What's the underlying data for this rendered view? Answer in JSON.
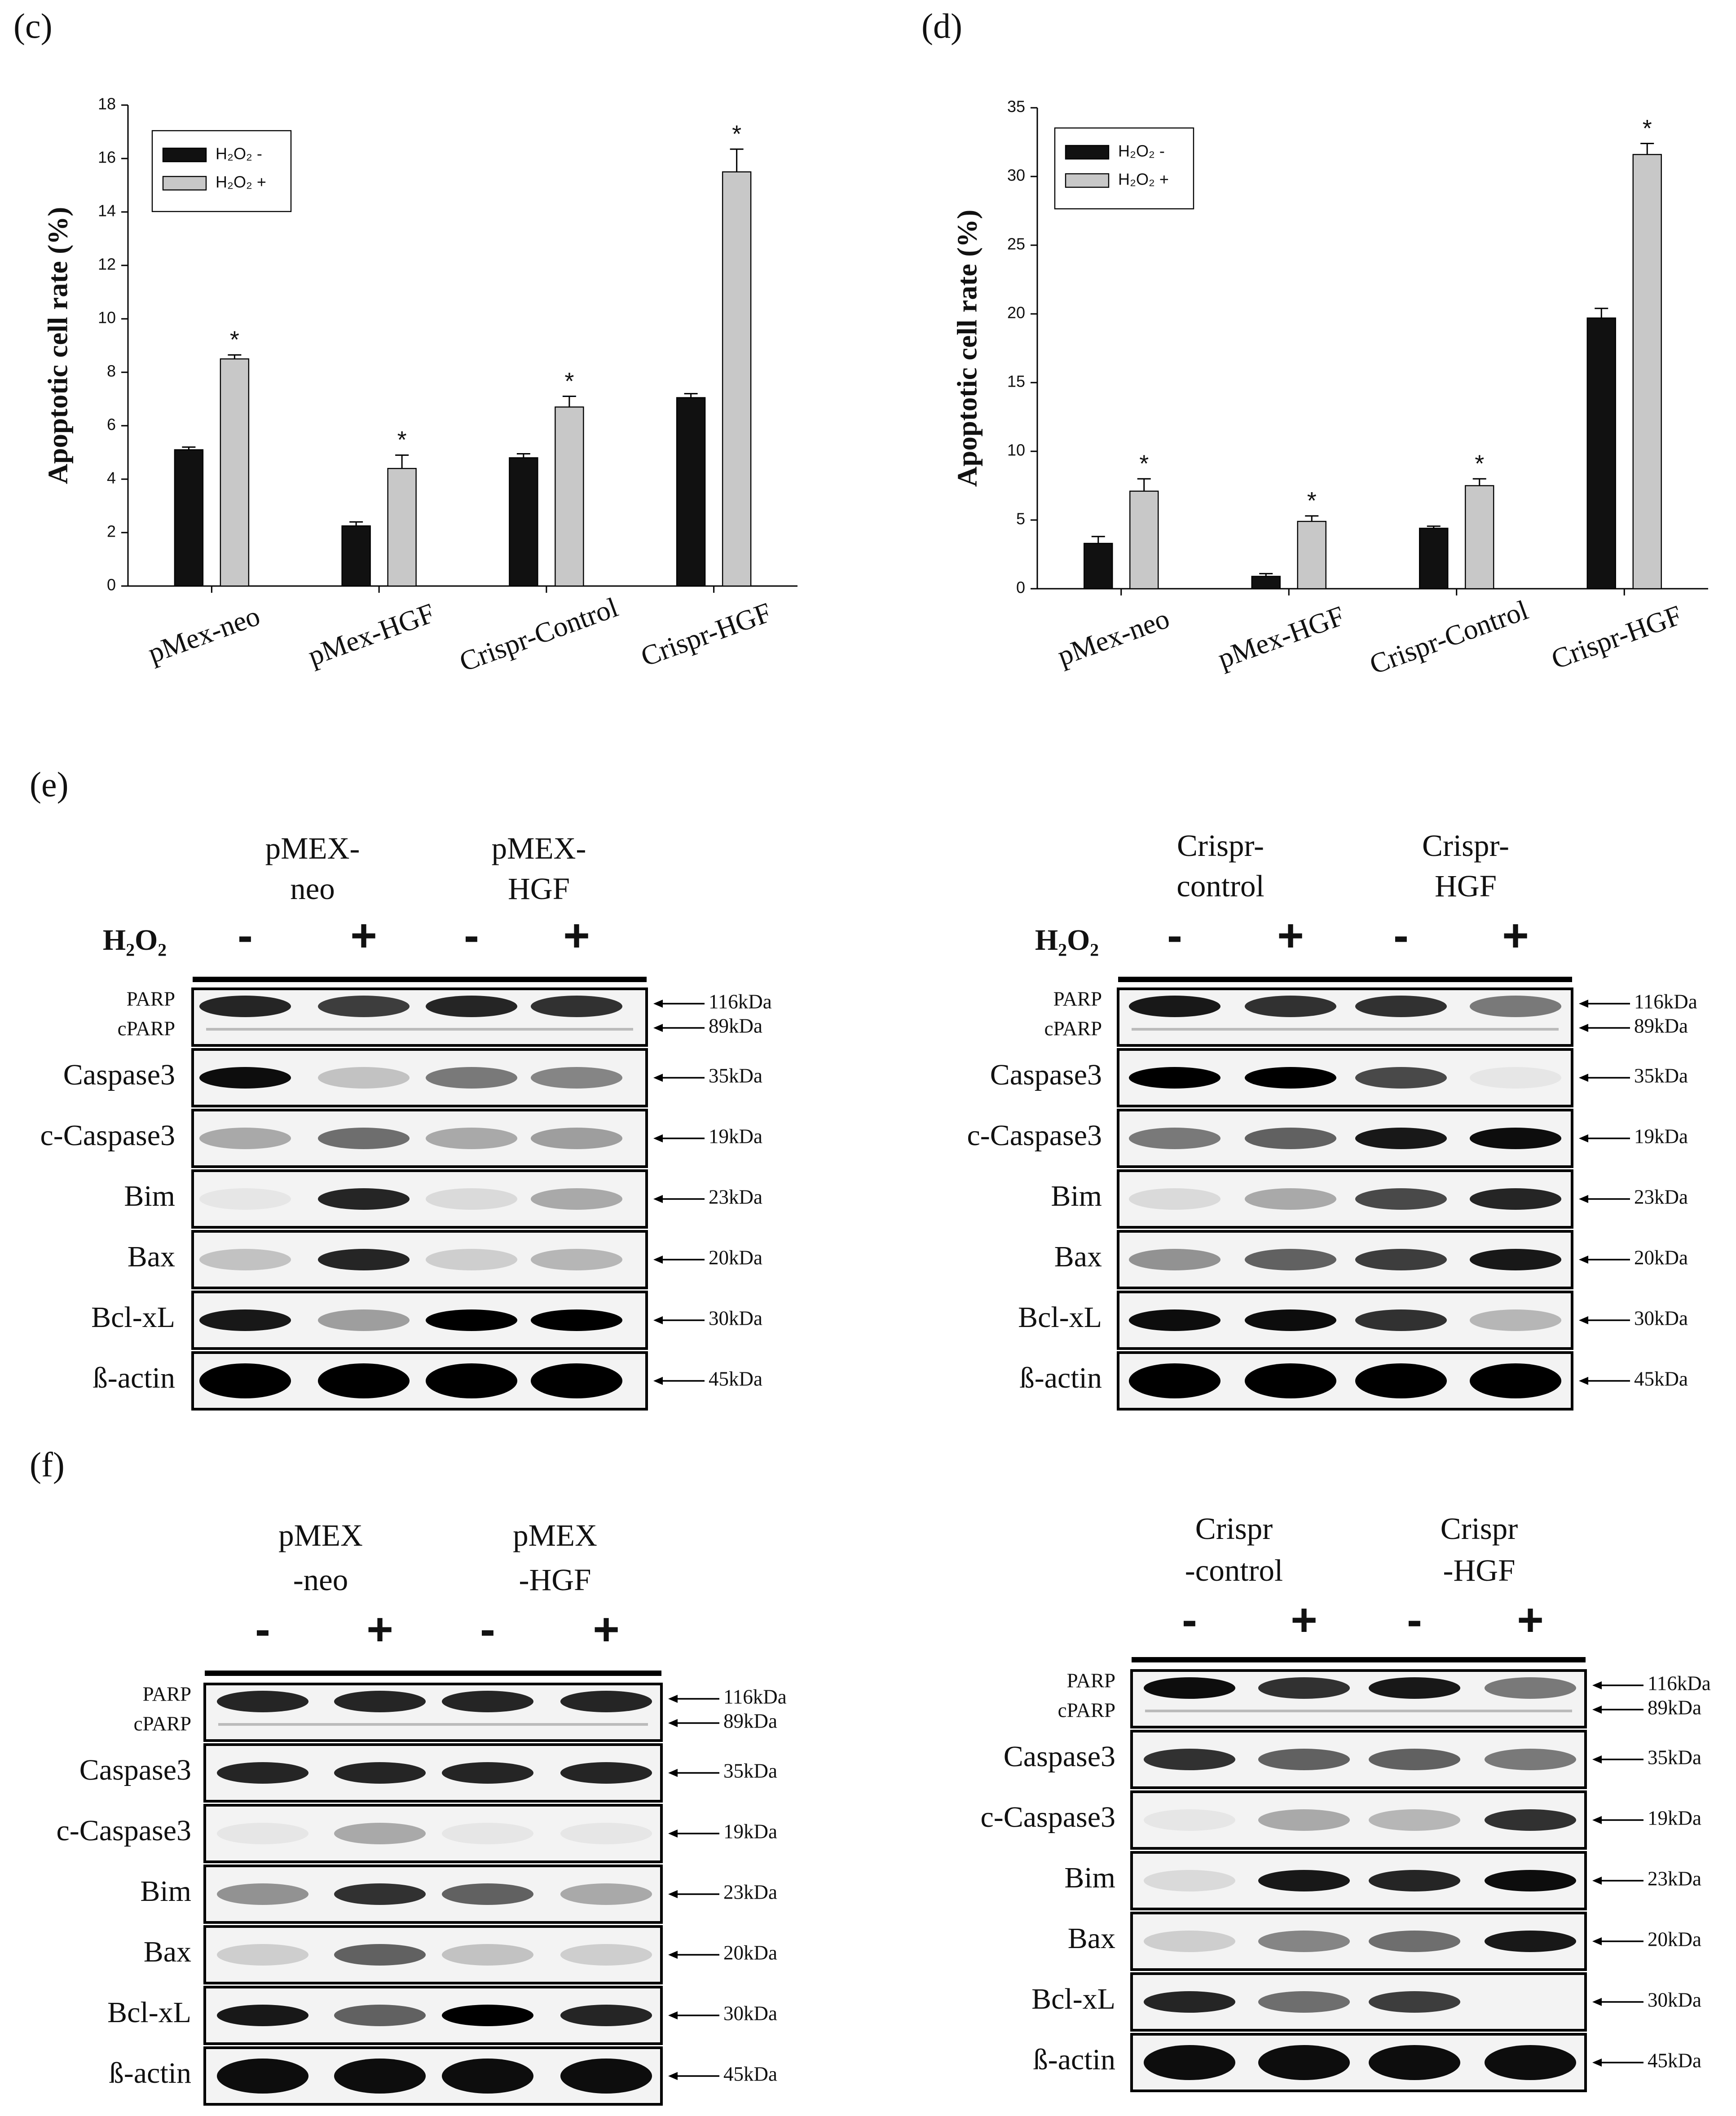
{
  "chart_data": [
    {
      "type": "bar",
      "panel": "(c)",
      "ylabel": "Apoptotic cell rate (%)",
      "categories": [
        "pMex-neo",
        "pMex-HGF",
        "Crispr-Control",
        "Crispr-HGF"
      ],
      "series": [
        {
          "name": "H₂O₂ -",
          "color": "#111111",
          "values": [
            5.1,
            2.25,
            4.8,
            7.05
          ],
          "errors": [
            0.1,
            0.15,
            0.15,
            0.15
          ]
        },
        {
          "name": "H₂O₂ +",
          "color": "#c8c8c8",
          "values": [
            8.5,
            4.4,
            6.7,
            15.5
          ],
          "errors": [
            0.15,
            0.5,
            0.4,
            0.85
          ],
          "significance": [
            "*",
            "*",
            "*",
            "*"
          ]
        }
      ],
      "ylim": [
        0,
        18
      ],
      "yticks": [
        0,
        2,
        4,
        6,
        8,
        10,
        12,
        14,
        16,
        18
      ],
      "legend": "upper left"
    },
    {
      "type": "bar",
      "panel": "(d)",
      "ylabel": "Apoptotic cell rate (%)",
      "categories": [
        "pMex-neo",
        "pMex-HGF",
        "Crispr-Control",
        "Crispr-HGF"
      ],
      "series": [
        {
          "name": "H₂O₂ -",
          "color": "#111111",
          "values": [
            3.3,
            0.9,
            4.4,
            19.7
          ],
          "errors": [
            0.5,
            0.2,
            0.15,
            0.7
          ]
        },
        {
          "name": "H₂O₂ +",
          "color": "#c8c8c8",
          "values": [
            7.1,
            4.9,
            7.5,
            31.6
          ],
          "errors": [
            0.9,
            0.4,
            0.5,
            0.8
          ],
          "significance": [
            "*",
            "*",
            "*",
            "*"
          ]
        }
      ],
      "ylim": [
        0,
        35
      ],
      "yticks": [
        0,
        5,
        10,
        15,
        20,
        25,
        30,
        35
      ],
      "legend": "upper left"
    }
  ],
  "blots": {
    "panels": [
      {
        "label": "(e)",
        "blots": [
          {
            "groups": [
              [
                "pMEX-",
                "neo"
              ],
              [
                "pMEX-",
                "HGF"
              ]
            ],
            "treatment": "H₂O₂",
            "signs": [
              "-",
              "+",
              "-",
              "+"
            ],
            "rows": [
              {
                "names": [
                  "PARP",
                  "cPARP"
                ],
                "sizes": [
                  "116kDa",
                  "89kDa"
                ]
              },
              {
                "names": [
                  "Caspase3"
                ],
                "sizes": [
                  "35kDa"
                ]
              },
              {
                "names": [
                  "c-Caspase3"
                ],
                "sizes": [
                  "19kDa"
                ]
              },
              {
                "names": [
                  "Bim"
                ],
                "sizes": [
                  "23kDa"
                ]
              },
              {
                "names": [
                  "Bax"
                ],
                "sizes": [
                  "20kDa"
                ]
              },
              {
                "names": [
                  "Bcl-xL"
                ],
                "sizes": [
                  "30kDa"
                ]
              },
              {
                "names": [
                  "ß-actin"
                ],
                "sizes": [
                  "45kDa"
                ]
              }
            ]
          },
          {
            "groups": [
              [
                "Crispr-",
                "control"
              ],
              [
                "Crispr-",
                "HGF"
              ]
            ],
            "treatment": "H₂O₂",
            "signs": [
              "-",
              "+",
              "-",
              "+"
            ],
            "rows": [
              {
                "names": [
                  "PARP",
                  "cPARP"
                ],
                "sizes": [
                  "116kDa",
                  "89kDa"
                ]
              },
              {
                "names": [
                  "Caspase3"
                ],
                "sizes": [
                  "35kDa"
                ]
              },
              {
                "names": [
                  "c-Caspase3"
                ],
                "sizes": [
                  "19kDa"
                ]
              },
              {
                "names": [
                  "Bim"
                ],
                "sizes": [
                  "23kDa"
                ]
              },
              {
                "names": [
                  "Bax"
                ],
                "sizes": [
                  "20kDa"
                ]
              },
              {
                "names": [
                  "Bcl-xL"
                ],
                "sizes": [
                  "30kDa"
                ]
              },
              {
                "names": [
                  "ß-actin"
                ],
                "sizes": [
                  "45kDa"
                ]
              }
            ]
          }
        ]
      },
      {
        "label": "(f)",
        "blots": [
          {
            "groups": [
              [
                "pMEX",
                "-neo"
              ],
              [
                "pMEX",
                "-HGF"
              ]
            ],
            "signs": [
              "-",
              "+",
              "-",
              "+"
            ],
            "rows": [
              {
                "names": [
                  "PARP",
                  "cPARP"
                ],
                "sizes": [
                  "116kDa",
                  "89kDa"
                ]
              },
              {
                "names": [
                  "Caspase3"
                ],
                "sizes": [
                  "35kDa"
                ]
              },
              {
                "names": [
                  "c-Caspase3"
                ],
                "sizes": [
                  "19kDa"
                ]
              },
              {
                "names": [
                  "Bim"
                ],
                "sizes": [
                  "23kDa"
                ]
              },
              {
                "names": [
                  "Bax"
                ],
                "sizes": [
                  "20kDa"
                ]
              },
              {
                "names": [
                  "Bcl-xL"
                ],
                "sizes": [
                  "30kDa"
                ]
              },
              {
                "names": [
                  "ß-actin"
                ],
                "sizes": [
                  "45kDa"
                ]
              }
            ]
          },
          {
            "groups": [
              [
                "Crispr",
                "-control"
              ],
              [
                "Crispr",
                "-HGF"
              ]
            ],
            "signs": [
              "-",
              "+",
              "-",
              "+"
            ],
            "rows": [
              {
                "names": [
                  "PARP",
                  "cPARP"
                ],
                "sizes": [
                  "116kDa",
                  "89kDa"
                ]
              },
              {
                "names": [
                  "Caspase3"
                ],
                "sizes": [
                  "35kDa"
                ]
              },
              {
                "names": [
                  "c-Caspase3"
                ],
                "sizes": [
                  "19kDa"
                ]
              },
              {
                "names": [
                  "Bim"
                ],
                "sizes": [
                  "23kDa"
                ]
              },
              {
                "names": [
                  "Bax"
                ],
                "sizes": [
                  "20kDa"
                ]
              },
              {
                "names": [
                  "Bcl-xL"
                ],
                "sizes": [
                  "30kDa"
                ]
              },
              {
                "names": [
                  "ß-actin"
                ],
                "sizes": [
                  "45kDa"
                ]
              }
            ]
          }
        ]
      }
    ]
  }
}
